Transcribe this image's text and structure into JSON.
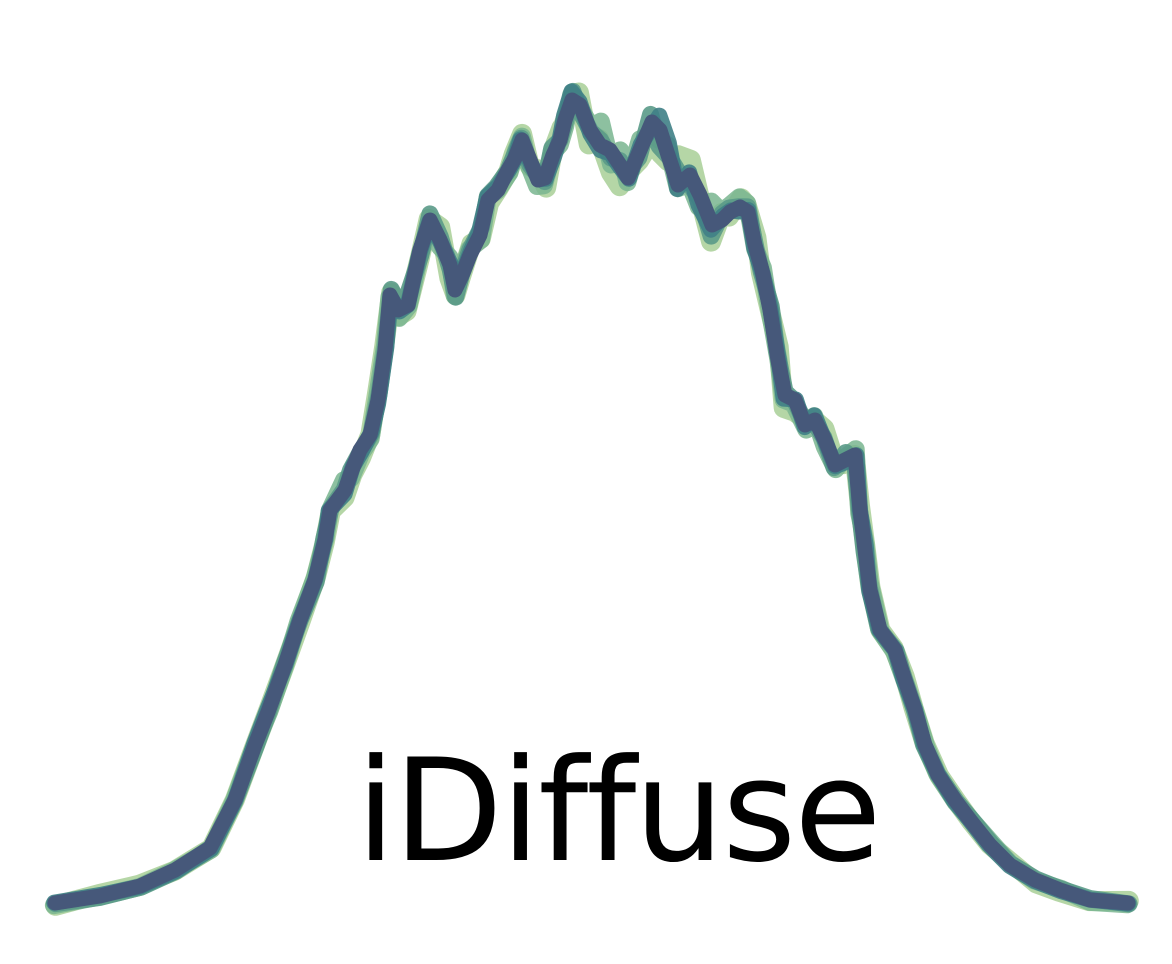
{
  "logo": {
    "wordmark": "iDiffuse",
    "style": {
      "background": "#ffffff",
      "text_color": "#000000",
      "curve_colors": [
        "#a8cf96",
        "#79b58f",
        "#5a9a88",
        "#3f7f86",
        "#46587a"
      ]
    }
  }
}
